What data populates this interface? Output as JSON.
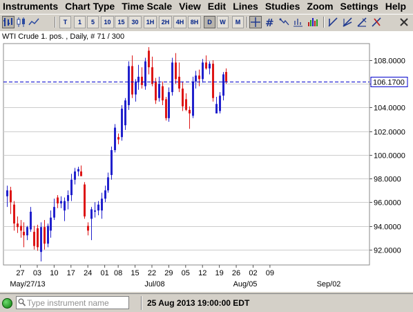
{
  "menu": [
    "Instruments",
    "Chart Type",
    "Time Scale",
    "View",
    "Edit",
    "Lines",
    "Studies",
    "Zoom",
    "Settings",
    "Help"
  ],
  "toolbar": {
    "chart_type_icons": [
      "bar-chart-icon",
      "candlestick-icon",
      "line-chart-icon"
    ],
    "time_scales": [
      "T",
      "1",
      "5",
      "10",
      "15",
      "30",
      "1H",
      "2H",
      "4H",
      "8H",
      "D",
      "W",
      "M"
    ],
    "selected_scale": "D",
    "tool_icons": [
      "crosshair-icon",
      "grid-icon",
      "trend-icon",
      "volume-bars-icon",
      "draw-lines-icon",
      "fib-fan-icon",
      "delete-lines-icon",
      "close-chart-icon"
    ]
  },
  "chart": {
    "instrument_label": "WTI Crude 1. pos. , Daily, # 71 / 300",
    "current_price_label": "106.1700",
    "colors": {
      "up": "#2020cc",
      "down": "#dd1515",
      "price_line": "#0000cc",
      "grid": "#cccccc"
    }
  },
  "chart_data": {
    "type": "candlestick",
    "title": "WTI Crude 1. pos. , Daily, # 71 / 300",
    "ylim": [
      90.7,
      109.4
    ],
    "y_ticks": [
      "92.0000",
      "94.0000",
      "96.0000",
      "98.0000",
      "100.0000",
      "102.0000",
      "104.0000",
      "106.0000",
      "108.0000"
    ],
    "x_tick_labels": [
      "27",
      "03",
      "10",
      "17",
      "24",
      "01",
      "08",
      "15",
      "22",
      "29",
      "05",
      "12",
      "19",
      "26",
      "02",
      "09"
    ],
    "month_labels": [
      "May/27/13",
      "Jul/08",
      "Aug/05",
      "Sep/02"
    ],
    "current_price": 106.17,
    "candles": [
      {
        "o": 96.5,
        "h": 97.4,
        "l": 95.6,
        "c": 97.0
      },
      {
        "o": 97.0,
        "h": 97.3,
        "l": 95.0,
        "c": 96.0
      },
      {
        "o": 95.8,
        "h": 96.1,
        "l": 93.6,
        "c": 94.2
      },
      {
        "o": 94.2,
        "h": 94.8,
        "l": 93.4,
        "c": 93.9
      },
      {
        "o": 94.0,
        "h": 94.5,
        "l": 93.0,
        "c": 93.6
      },
      {
        "o": 93.5,
        "h": 94.3,
        "l": 92.2,
        "c": 93.2
      },
      {
        "o": 93.2,
        "h": 94.0,
        "l": 92.8,
        "c": 93.9
      },
      {
        "o": 93.7,
        "h": 95.6,
        "l": 93.5,
        "c": 95.2
      },
      {
        "o": 93.5,
        "h": 94.0,
        "l": 92.0,
        "c": 92.3
      },
      {
        "o": 93.8,
        "h": 94.1,
        "l": 91.9,
        "c": 92.2
      },
      {
        "o": 91.8,
        "h": 94.3,
        "l": 91.0,
        "c": 93.9
      },
      {
        "o": 93.9,
        "h": 94.5,
        "l": 92.0,
        "c": 92.5
      },
      {
        "o": 92.5,
        "h": 94.2,
        "l": 92.2,
        "c": 94.0
      },
      {
        "o": 93.6,
        "h": 95.3,
        "l": 93.0,
        "c": 94.7
      },
      {
        "o": 94.7,
        "h": 96.3,
        "l": 94.5,
        "c": 95.6
      },
      {
        "o": 96.4,
        "h": 96.6,
        "l": 95.5,
        "c": 95.9
      },
      {
        "o": 95.9,
        "h": 96.5,
        "l": 95.5,
        "c": 96.1
      },
      {
        "o": 95.3,
        "h": 96.4,
        "l": 94.4,
        "c": 96.1
      },
      {
        "o": 96.1,
        "h": 97.0,
        "l": 95.4,
        "c": 96.6
      },
      {
        "o": 96.6,
        "h": 98.4,
        "l": 96.1,
        "c": 97.9
      },
      {
        "o": 97.9,
        "h": 98.9,
        "l": 97.5,
        "c": 98.6
      },
      {
        "o": 98.6,
        "h": 99.0,
        "l": 98.2,
        "c": 98.8
      },
      {
        "o": 98.6,
        "h": 99.1,
        "l": 98.2,
        "c": 98.2
      },
      {
        "o": 97.5,
        "h": 97.7,
        "l": 94.6,
        "c": 94.8
      },
      {
        "o": 94.0,
        "h": 94.3,
        "l": 93.2,
        "c": 93.6
      },
      {
        "o": 94.6,
        "h": 95.6,
        "l": 92.8,
        "c": 95.4
      },
      {
        "o": 95.2,
        "h": 96.0,
        "l": 94.7,
        "c": 95.3
      },
      {
        "o": 95.3,
        "h": 96.1,
        "l": 94.9,
        "c": 95.8
      },
      {
        "o": 95.3,
        "h": 96.8,
        "l": 94.6,
        "c": 96.3
      },
      {
        "o": 96.3,
        "h": 97.4,
        "l": 96.0,
        "c": 97.0
      },
      {
        "o": 97.0,
        "h": 98.5,
        "l": 96.8,
        "c": 98.1
      },
      {
        "o": 98.3,
        "h": 100.7,
        "l": 97.9,
        "c": 100.4
      },
      {
        "o": 100.4,
        "h": 102.6,
        "l": 100.2,
        "c": 102.3
      },
      {
        "o": 101.5,
        "h": 101.8,
        "l": 100.9,
        "c": 101.3
      },
      {
        "o": 101.5,
        "h": 104.2,
        "l": 101.2,
        "c": 103.9
      },
      {
        "o": 102.5,
        "h": 104.8,
        "l": 102.1,
        "c": 104.6
      },
      {
        "o": 104.2,
        "h": 107.9,
        "l": 103.8,
        "c": 107.5
      },
      {
        "o": 107.5,
        "h": 108.4,
        "l": 104.8,
        "c": 105.1
      },
      {
        "o": 105.1,
        "h": 106.4,
        "l": 104.5,
        "c": 106.2
      },
      {
        "o": 106.2,
        "h": 107.6,
        "l": 105.5,
        "c": 106.6
      },
      {
        "o": 106.6,
        "h": 107.4,
        "l": 105.6,
        "c": 105.9
      },
      {
        "o": 105.8,
        "h": 108.2,
        "l": 105.5,
        "c": 107.9
      },
      {
        "o": 108.8,
        "h": 109.1,
        "l": 106.8,
        "c": 107.4
      },
      {
        "o": 107.4,
        "h": 108.3,
        "l": 105.8,
        "c": 106.0
      },
      {
        "o": 106.2,
        "h": 106.5,
        "l": 104.3,
        "c": 104.6
      },
      {
        "o": 104.8,
        "h": 106.6,
        "l": 104.5,
        "c": 106.0
      },
      {
        "o": 105.8,
        "h": 106.2,
        "l": 104.2,
        "c": 104.6
      },
      {
        "o": 104.7,
        "h": 104.9,
        "l": 102.9,
        "c": 103.1
      },
      {
        "o": 103.1,
        "h": 105.7,
        "l": 102.8,
        "c": 105.3
      },
      {
        "o": 105.3,
        "h": 108.2,
        "l": 105.0,
        "c": 107.8
      },
      {
        "o": 107.8,
        "h": 108.6,
        "l": 106.0,
        "c": 106.4
      },
      {
        "o": 106.6,
        "h": 107.8,
        "l": 105.3,
        "c": 105.6
      },
      {
        "o": 105.6,
        "h": 106.2,
        "l": 103.7,
        "c": 104.1
      },
      {
        "o": 104.7,
        "h": 105.2,
        "l": 103.7,
        "c": 103.8
      },
      {
        "o": 103.8,
        "h": 104.1,
        "l": 102.2,
        "c": 103.5
      },
      {
        "o": 103.3,
        "h": 106.6,
        "l": 103.1,
        "c": 106.2
      },
      {
        "o": 106.2,
        "h": 107.1,
        "l": 105.6,
        "c": 106.7
      },
      {
        "o": 106.7,
        "h": 107.2,
        "l": 105.8,
        "c": 106.4
      },
      {
        "o": 106.4,
        "h": 108.1,
        "l": 106.1,
        "c": 107.8
      },
      {
        "o": 107.8,
        "h": 108.4,
        "l": 107.2,
        "c": 107.3
      },
      {
        "o": 107.3,
        "h": 107.9,
        "l": 106.8,
        "c": 107.7
      },
      {
        "o": 107.7,
        "h": 108.0,
        "l": 104.5,
        "c": 104.8
      },
      {
        "o": 103.5,
        "h": 104.9,
        "l": 103.5,
        "c": 104.3
      },
      {
        "o": 103.7,
        "h": 105.3,
        "l": 103.5,
        "c": 105.0
      },
      {
        "o": 105.0,
        "h": 107.0,
        "l": 104.6,
        "c": 106.8
      },
      {
        "o": 107.0,
        "h": 107.3,
        "l": 106.0,
        "c": 106.2
      }
    ]
  },
  "status": {
    "instrument_placeholder": "Type instrument name",
    "datetime": "25 Aug 2013 19:00:00 EDT"
  }
}
